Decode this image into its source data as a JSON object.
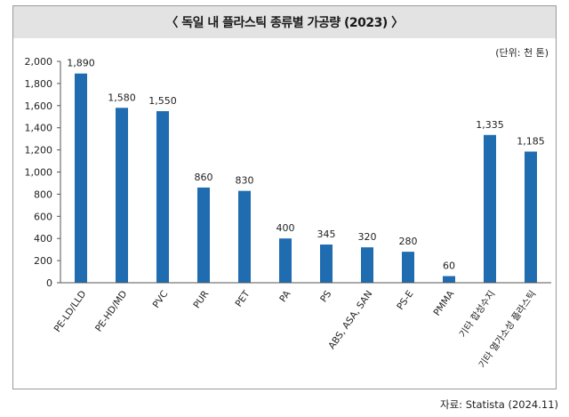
{
  "title": "〈 독일 내 플라스틱 종류별 가공량 (2023) 〉",
  "unit_note": "(단위: 천 톤)",
  "source": "자료: Statista (2024.11)",
  "colors": {
    "bar": "#1f6cb0",
    "title_bg": "#e3e3e3",
    "axis": "#555555"
  },
  "chart_data": {
    "type": "bar",
    "title": "〈 독일 내 플라스틱 종류별 가공량 (2023) 〉",
    "xlabel": "",
    "ylabel": "",
    "ylim": [
      0,
      2000
    ],
    "yticks": [
      0,
      200,
      400,
      600,
      800,
      1000,
      1200,
      1400,
      1600,
      1800,
      2000
    ],
    "ytick_labels": [
      "0",
      "200",
      "400",
      "600",
      "800",
      "1,000",
      "1,200",
      "1,400",
      "1,600",
      "1,800",
      "2,000"
    ],
    "grid": false,
    "categories": [
      "PE-LD/LLD",
      "PE-HD/MD",
      "PVC",
      "PUR",
      "PET",
      "PA",
      "PS",
      "ABS, ASA, SAN",
      "PS-E",
      "PMMA",
      "기타 합성수지",
      "기타 열가소성 플라스틱"
    ],
    "values": [
      1890,
      1580,
      1550,
      860,
      830,
      400,
      345,
      320,
      280,
      60,
      1335,
      1185
    ],
    "value_labels": [
      "1,890",
      "1,580",
      "1,550",
      "860",
      "830",
      "400",
      "345",
      "320",
      "280",
      "60",
      "1,335",
      "1,185"
    ]
  }
}
